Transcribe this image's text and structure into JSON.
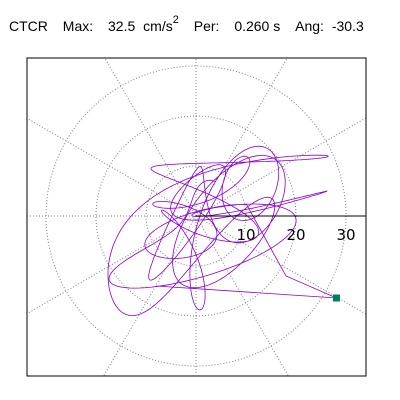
{
  "header": {
    "station": "CTCR",
    "max_label": "Max:",
    "max_value": "32.5",
    "max_unit": "cm/s",
    "max_unit_exp": "2",
    "per_label": "Per:",
    "per_value": "0.260 s",
    "ang_label": "Ang:",
    "ang_value": "-30.3"
  },
  "chart_data": {
    "type": "line",
    "plot": "particle motion polar plot",
    "radial_rings": [
      10,
      20,
      30
    ],
    "radial_tick_labels": [
      "10",
      "20",
      "30"
    ],
    "spoke_step_deg": 30,
    "grid": true,
    "max_amplitude": 32.5,
    "max_angle_deg": -30.3,
    "peak_point": {
      "x": 28.1,
      "y": -16.4
    },
    "trace_color": "#8a00d4",
    "marker_color": "#007e5c"
  }
}
